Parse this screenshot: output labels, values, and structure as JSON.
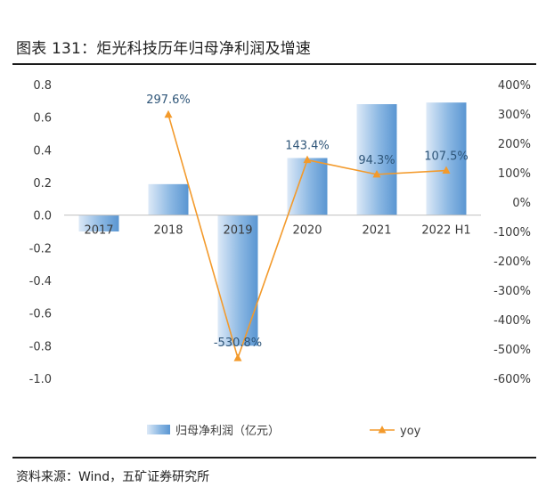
{
  "title": "图表 131：炬光科技历年归母净利润及增速",
  "source": "资料来源：Wind，五矿证券研究所",
  "colors": {
    "bar_light": "#dce9f7",
    "bar_dark": "#5a96d2",
    "line": "#f39a2b",
    "axis_text": "#3a3a3a",
    "label_text": "#2e5578"
  },
  "chart_data": {
    "type": "bar+line",
    "categories": [
      "2017",
      "2018",
      "2019",
      "2020",
      "2021",
      "2022 H1"
    ],
    "series": [
      {
        "name": "归母净利润（亿元）",
        "type": "bar",
        "axis": "left",
        "values": [
          -0.1,
          0.19,
          -0.8,
          0.35,
          0.68,
          0.69
        ]
      },
      {
        "name": "yoy",
        "type": "line",
        "axis": "right",
        "values": [
          null,
          297.6,
          -530.8,
          143.4,
          94.3,
          107.5
        ],
        "labels": [
          "",
          "297.6%",
          "-530.8%",
          "143.4%",
          "94.3%",
          "107.5%"
        ]
      }
    ],
    "y_left": {
      "min": -1.0,
      "max": 0.8,
      "ticks": [
        "0.8",
        "0.6",
        "0.4",
        "0.2",
        "0.0",
        "-0.2",
        "-0.4",
        "-0.6",
        "-0.8",
        "-1.0"
      ]
    },
    "y_right": {
      "min": -600,
      "max": 400,
      "ticks": [
        "400%",
        "300%",
        "200%",
        "100%",
        "0%",
        "-100%",
        "-200%",
        "-300%",
        "-400%",
        "-500%",
        "-600%"
      ]
    },
    "legend_position": "bottom",
    "grid": false
  }
}
